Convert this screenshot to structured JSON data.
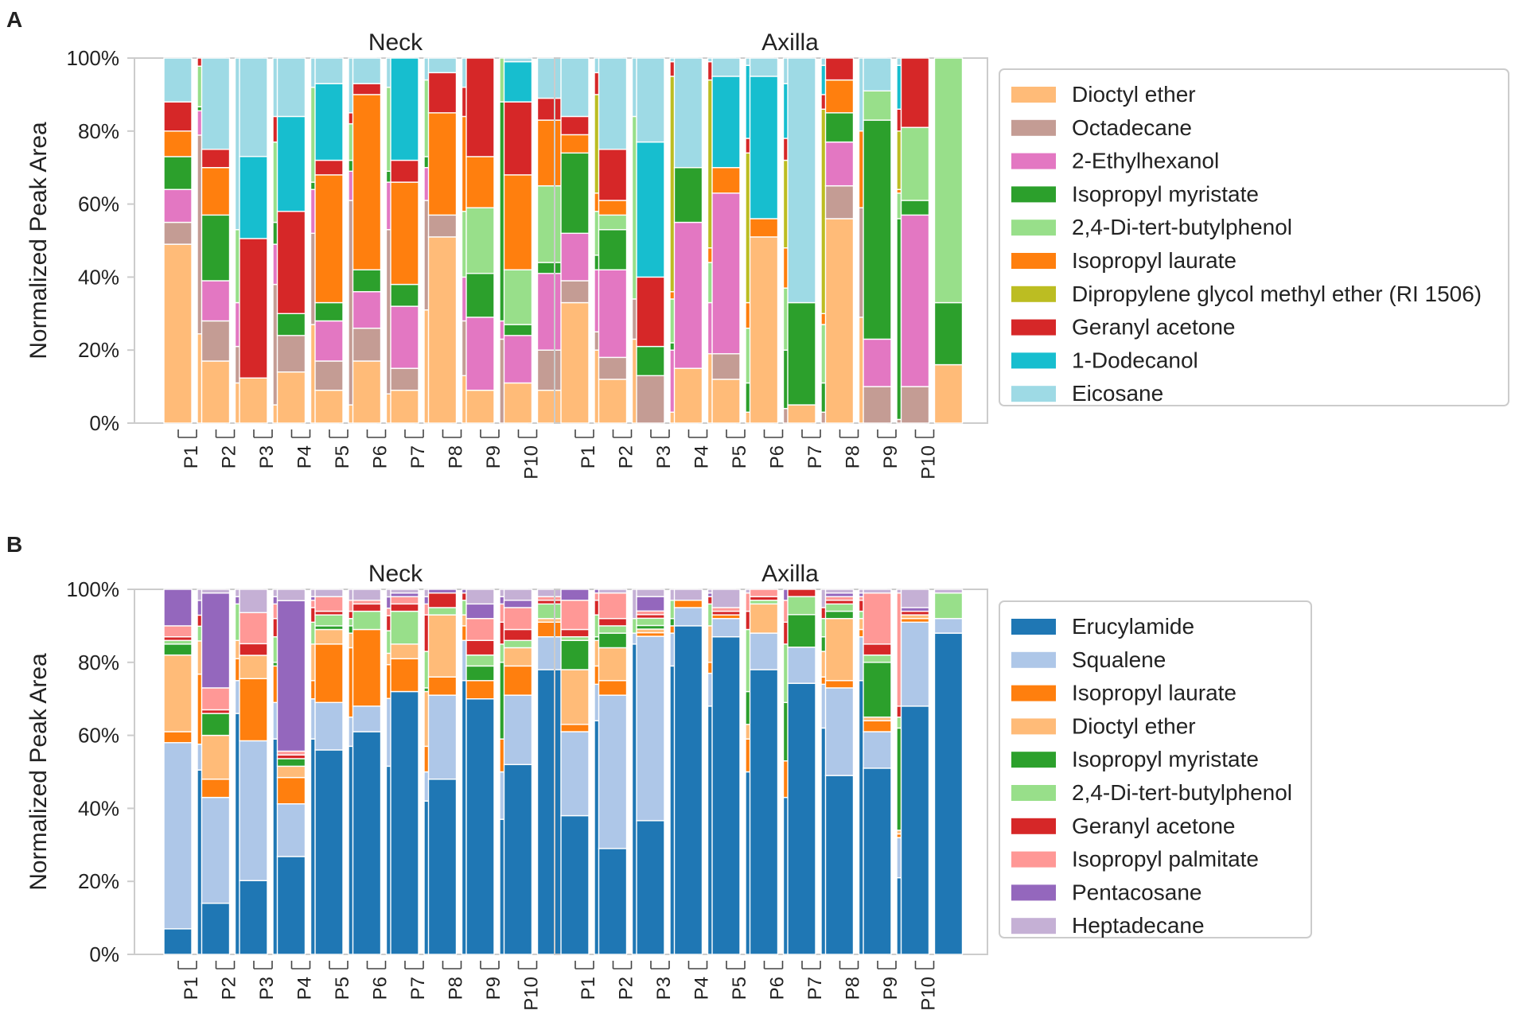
{
  "ylabel": "Normalized Peak Area",
  "yticks": [
    "0%",
    "20%",
    "40%",
    "60%",
    "80%",
    "100%"
  ],
  "patients": [
    "P1",
    "P2",
    "P3",
    "P4",
    "P5",
    "P6",
    "P7",
    "P8",
    "P9",
    "P10"
  ],
  "chart_data": [
    {
      "type": "bar",
      "stacked": true,
      "panel": "A",
      "ylabel": "Normalized Peak Area",
      "ylim": [
        0,
        100
      ],
      "legend_position": "right",
      "facets": [
        "Neck",
        "Axilla"
      ],
      "categories": [
        "P1",
        "P2",
        "P3",
        "P4",
        "P5",
        "P6",
        "P7",
        "P8",
        "P9",
        "P10"
      ],
      "bars_per_category": 2,
      "series": [
        {
          "name": "Dioctyl ether",
          "color": "#ffbb78"
        },
        {
          "name": "Octadecane",
          "color": "#c49c94"
        },
        {
          "name": "2-Ethylhexanol",
          "color": "#e377c2"
        },
        {
          "name": "Isopropyl myristate",
          "color": "#2ca02c"
        },
        {
          "name": "2,4-Di-tert-butylphenol",
          "color": "#98df8a"
        },
        {
          "name": "Isopropyl laurate",
          "color": "#ff7f0e"
        },
        {
          "name": "Dipropylene glycol methyl ether (RI 1506)",
          "color": "#bcbd22"
        },
        {
          "name": "Geranyl acetone",
          "color": "#d62728"
        },
        {
          "name": "1-Dodecanol",
          "color": "#17becf"
        },
        {
          "name": "Eicosane",
          "color": "#9edae5"
        }
      ],
      "values": {
        "Neck": [
          [
            49,
            6,
            9,
            9,
            0,
            7,
            0,
            8,
            0,
            12
          ],
          [
            22,
            49,
            6,
            1,
            10,
            0,
            0,
            2,
            0,
            0
          ],
          [
            17,
            11,
            11,
            18,
            0,
            13,
            0,
            5,
            0,
            25
          ],
          [
            11,
            10,
            12,
            0,
            20,
            0,
            0,
            0,
            0,
            47
          ],
          [
            11,
            0,
            0,
            0,
            0,
            0,
            0,
            34,
            20,
            24
          ],
          [
            5,
            33,
            11,
            6,
            22,
            0,
            0,
            7,
            0,
            16
          ],
          [
            14,
            10,
            0,
            6,
            0,
            0,
            0,
            28,
            26,
            16
          ],
          [
            27,
            25,
            12,
            2,
            26,
            0,
            0,
            0,
            0,
            8
          ],
          [
            9,
            8,
            11,
            5,
            0,
            35,
            0,
            4,
            21,
            7
          ],
          [
            5,
            56,
            8,
            3,
            10,
            0,
            0,
            3,
            0,
            15
          ],
          [
            17,
            9,
            10,
            6,
            0,
            48,
            0,
            3,
            0,
            7
          ],
          [
            8,
            45,
            13,
            3,
            23,
            0,
            0,
            0,
            0,
            8
          ],
          [
            9,
            6,
            17,
            6,
            0,
            28,
            0,
            6,
            28,
            0
          ],
          [
            31,
            30,
            9,
            3,
            21,
            0,
            0,
            0,
            0,
            6
          ],
          [
            51,
            6,
            0,
            0,
            0,
            28,
            0,
            11,
            0,
            4
          ],
          [
            13,
            15,
            12,
            0,
            18,
            26,
            0,
            8,
            0,
            8
          ],
          [
            9,
            0,
            20,
            12,
            18,
            14,
            0,
            27,
            0,
            0
          ],
          [
            0,
            23,
            5,
            60,
            12,
            0,
            0,
            0,
            0,
            0
          ],
          [
            11,
            0,
            13,
            3,
            15,
            26,
            0,
            20,
            11,
            1
          ],
          [
            9,
            11,
            21,
            3,
            21,
            18,
            0,
            6,
            0,
            11
          ]
        ],
        "Axilla": [
          [
            33,
            6,
            13,
            22,
            0,
            5,
            0,
            5,
            0,
            16
          ],
          [
            20,
            5,
            17,
            4,
            12,
            5,
            27,
            6,
            0,
            4
          ],
          [
            12,
            6,
            24,
            11,
            4,
            4,
            0,
            14,
            0,
            25
          ],
          [
            23,
            11,
            0,
            0,
            50,
            0,
            0,
            0,
            0,
            16
          ],
          [
            0,
            13,
            0,
            8,
            0,
            0,
            0,
            19,
            37,
            23
          ],
          [
            3,
            0,
            17,
            2,
            12,
            2,
            59,
            4,
            0,
            1
          ],
          [
            15,
            0,
            40,
            15,
            0,
            0,
            0,
            0,
            0,
            30
          ],
          [
            19,
            0,
            14,
            0,
            11,
            4,
            46,
            5,
            0,
            1
          ],
          [
            12,
            7,
            44,
            0,
            0,
            7,
            0,
            0,
            25,
            5
          ],
          [
            3,
            0,
            0,
            8,
            15,
            7,
            41,
            4,
            20,
            2
          ],
          [
            51,
            0,
            0,
            0,
            0,
            5,
            0,
            0,
            39,
            5
          ],
          [
            0,
            4,
            0,
            16,
            17,
            11,
            24,
            6,
            15,
            7
          ],
          [
            5,
            0,
            0,
            28,
            0,
            0,
            0,
            0,
            0,
            67
          ],
          [
            0,
            3,
            0,
            8,
            16,
            3,
            56,
            4,
            8,
            2
          ],
          [
            56,
            9,
            12,
            8,
            0,
            9,
            0,
            6,
            0,
            0
          ],
          [
            29,
            30,
            0,
            0,
            0,
            21,
            0,
            0,
            0,
            20
          ],
          [
            0,
            10,
            13,
            60,
            8,
            0,
            0,
            0,
            0,
            9
          ],
          [
            0,
            1,
            0,
            55,
            7,
            1,
            16,
            6,
            12,
            2
          ],
          [
            0,
            10,
            47,
            4,
            20,
            0,
            0,
            19,
            0,
            0
          ],
          [
            16,
            0,
            0,
            17,
            67,
            0,
            0,
            0,
            0,
            0
          ]
        ]
      }
    },
    {
      "type": "bar",
      "stacked": true,
      "panel": "B",
      "ylabel": "Normalized Peak Area",
      "ylim": [
        0,
        100
      ],
      "legend_position": "right",
      "facets": [
        "Neck",
        "Axilla"
      ],
      "categories": [
        "P1",
        "P2",
        "P3",
        "P4",
        "P5",
        "P6",
        "P7",
        "P8",
        "P9",
        "P10"
      ],
      "bars_per_category": 2,
      "series": [
        {
          "name": "Erucylamide",
          "color": "#1f77b4"
        },
        {
          "name": "Squalene",
          "color": "#aec7e8"
        },
        {
          "name": "Isopropyl laurate",
          "color": "#ff7f0e"
        },
        {
          "name": "Dioctyl ether",
          "color": "#ffbb78"
        },
        {
          "name": "Isopropyl myristate",
          "color": "#2ca02c"
        },
        {
          "name": "2,4-Di-tert-butylphenol",
          "color": "#98df8a"
        },
        {
          "name": "Geranyl acetone",
          "color": "#d62728"
        },
        {
          "name": "Isopropyl palmitate",
          "color": "#ff9896"
        },
        {
          "name": "Pentacosane",
          "color": "#9467bd"
        },
        {
          "name": "Heptadecane",
          "color": "#c5b0d5"
        }
      ],
      "values": {
        "Neck": [
          [
            7,
            51,
            3,
            21,
            3,
            1,
            1,
            3,
            10,
            0
          ],
          [
            50,
            7,
            19,
            9,
            0,
            4,
            3,
            0,
            4,
            3
          ],
          [
            14,
            29,
            5,
            12,
            6,
            0,
            1,
            6,
            26,
            1
          ],
          [
            66,
            9,
            6,
            5,
            0,
            10,
            0,
            0,
            2,
            2
          ],
          [
            19,
            36,
            16,
            6,
            0,
            0,
            3,
            8,
            0,
            6
          ],
          [
            59,
            10,
            10,
            0,
            1,
            7,
            5,
            4,
            2,
            2
          ],
          [
            26,
            14,
            7,
            3,
            2,
            0,
            1,
            1,
            40,
            3
          ],
          [
            59,
            11,
            5,
            10,
            0,
            6,
            4,
            2,
            1,
            2
          ],
          [
            56,
            13,
            16,
            4,
            1,
            3,
            1,
            4,
            0,
            2
          ],
          [
            57,
            8,
            19,
            4,
            2,
            2,
            2,
            3,
            0,
            3
          ],
          [
            61,
            7,
            21,
            0,
            0,
            5,
            2,
            1,
            0,
            3
          ],
          [
            50,
            18,
            9,
            3,
            0,
            6,
            4,
            2,
            3,
            2
          ],
          [
            72,
            0,
            9,
            4,
            0,
            9,
            2,
            2,
            1,
            1
          ],
          [
            42,
            8,
            7,
            15,
            1,
            10,
            10,
            3,
            2,
            2
          ],
          [
            48,
            23,
            5,
            17,
            0,
            2,
            4,
            0,
            1,
            0
          ],
          [
            75,
            11,
            4,
            3,
            0,
            4,
            2,
            0,
            1,
            0
          ],
          [
            70,
            0,
            5,
            0,
            4,
            3,
            4,
            6,
            4,
            4
          ],
          [
            37,
            13,
            9,
            0,
            21,
            5,
            6,
            5,
            2,
            2
          ],
          [
            52,
            19,
            8,
            5,
            0,
            2,
            3,
            6,
            2,
            3
          ],
          [
            78,
            9,
            4,
            1,
            0,
            4,
            1,
            1,
            0,
            2
          ]
        ],
        "Axilla": [
          [
            38,
            23,
            2,
            15,
            8,
            1,
            2,
            8,
            3,
            0
          ],
          [
            64,
            10,
            5,
            7,
            1,
            6,
            4,
            2,
            1,
            0
          ],
          [
            29,
            42,
            4,
            9,
            4,
            2,
            2,
            7,
            0,
            1
          ],
          [
            85,
            3,
            0,
            0,
            0,
            4,
            0,
            0,
            0,
            8
          ],
          [
            37,
            51,
            1,
            1,
            1,
            2,
            1,
            1,
            4,
            2
          ],
          [
            79,
            9,
            2,
            0,
            2,
            5,
            0,
            0,
            0,
            3
          ],
          [
            90,
            5,
            2,
            0,
            0,
            0,
            0,
            0,
            0,
            3
          ],
          [
            68,
            9,
            3,
            10,
            0,
            6,
            2,
            0,
            1,
            1
          ],
          [
            87,
            5,
            1,
            0,
            0,
            0,
            1,
            1,
            0,
            5
          ],
          [
            50,
            0,
            9,
            4,
            9,
            17,
            5,
            5,
            0,
            1
          ],
          [
            78,
            10,
            0,
            8,
            0,
            1,
            1,
            2,
            0,
            0
          ],
          [
            43,
            0,
            10,
            0,
            16,
            16,
            6,
            6,
            3,
            0
          ],
          [
            75,
            10,
            0,
            0,
            9,
            5,
            2,
            0,
            0,
            0
          ],
          [
            62,
            12,
            2,
            7,
            4,
            5,
            3,
            0,
            0,
            5
          ],
          [
            49,
            24,
            2,
            17,
            2,
            2,
            1,
            1,
            1,
            1
          ],
          [
            75,
            12,
            2,
            3,
            0,
            2,
            3,
            1,
            1,
            1
          ],
          [
            51,
            10,
            3,
            1,
            15,
            2,
            3,
            14,
            0,
            1
          ],
          [
            21,
            11,
            1,
            1,
            28,
            3,
            3,
            31,
            0,
            1
          ],
          [
            68,
            23,
            1,
            1,
            0,
            0,
            1,
            0,
            1,
            5
          ],
          [
            88,
            4,
            0,
            0,
            0,
            7,
            0,
            0,
            0,
            1
          ]
        ]
      }
    }
  ]
}
